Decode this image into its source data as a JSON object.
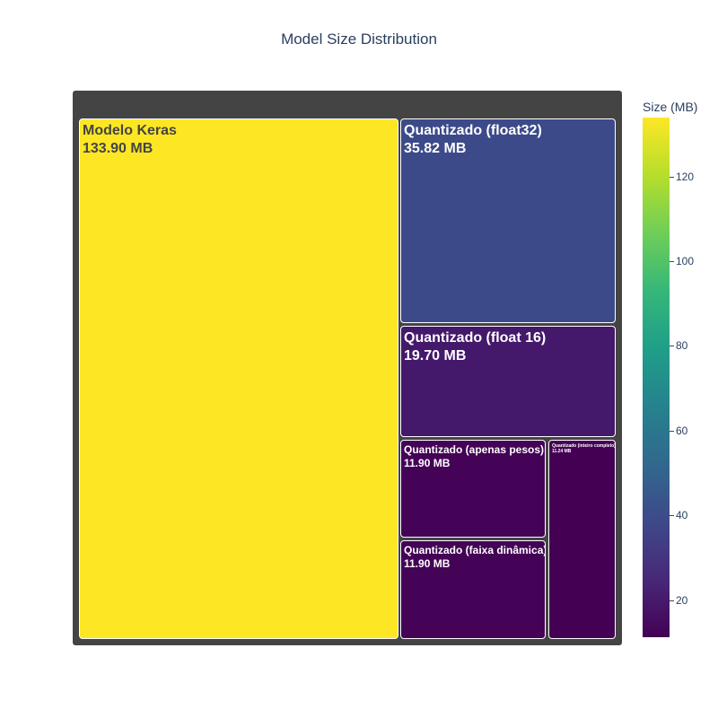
{
  "chart_data": {
    "type": "treemap",
    "title": "Model Size Distribution",
    "colorbar": {
      "title": "Size (MB)",
      "colorscale": "viridis",
      "range": [
        11.24,
        133.9
      ],
      "ticks": [
        20,
        40,
        60,
        80,
        100,
        120
      ]
    },
    "tiles": [
      {
        "label": "Modelo Keras",
        "value": 133.9,
        "text": "133.90 MB",
        "color": "#fde725"
      },
      {
        "label": "Quantizado (float32)",
        "value": 35.82,
        "text": "35.82 MB",
        "color": "#3c4a8a"
      },
      {
        "label": "Quantizado (float 16)",
        "value": 19.7,
        "text": "19.70 MB",
        "color": "#44186b"
      },
      {
        "label": "Quantizado (apenas pesos)",
        "value": 11.9,
        "text": "11.90 MB",
        "color": "#440356"
      },
      {
        "label": "Quantizado (faixa dinâmica)",
        "value": 11.9,
        "text": "11.90 MB",
        "color": "#440356"
      },
      {
        "label": "Quantizado (inteiro completo)",
        "value": 11.24,
        "text": "11.24 MB",
        "color": "#440154"
      }
    ]
  }
}
